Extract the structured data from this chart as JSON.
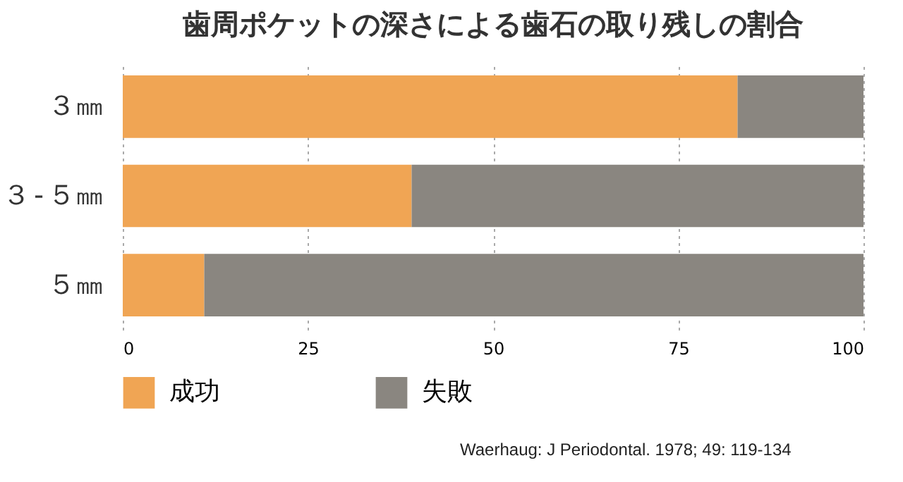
{
  "chart_data": {
    "type": "bar",
    "orientation": "horizontal",
    "stacked": true,
    "title": "歯周ポケットの深さによる歯石の取り残しの割合",
    "categories": [
      "３㎜",
      "３-５㎜",
      "５㎜"
    ],
    "series": [
      {
        "name": "成功",
        "color": "#f0a554",
        "values": [
          83,
          39,
          11
        ]
      },
      {
        "name": "失敗",
        "color": "#8a8680",
        "values": [
          17,
          61,
          89
        ]
      }
    ],
    "xlim": [
      0,
      100
    ],
    "xticks": [
      0,
      25,
      50,
      75,
      100
    ],
    "grid": "x",
    "legend": "bottom",
    "annotations": [
      "Waerhaug: J Periodontal. 1978; 49: 119-134"
    ]
  }
}
